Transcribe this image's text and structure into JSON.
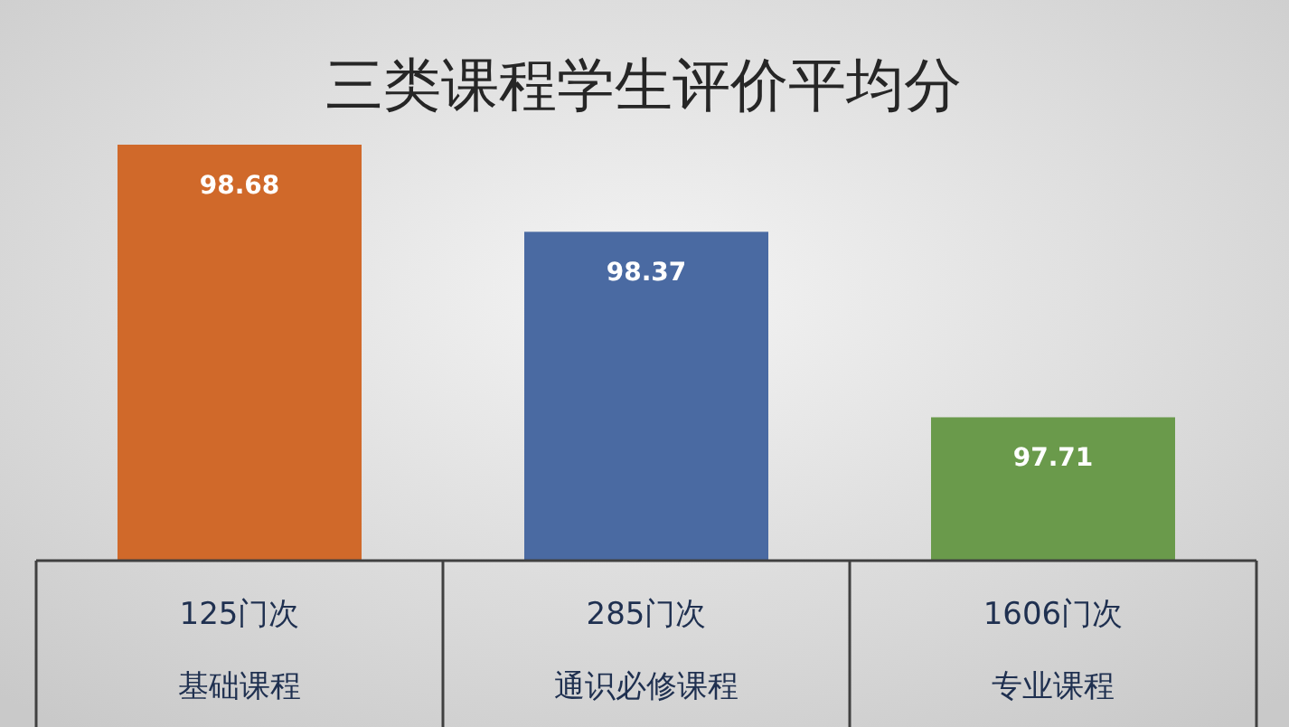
{
  "chart_data": {
    "type": "bar",
    "title": "三类课程学生评价平均分",
    "categories": [
      "基础课程",
      "通识必修课程",
      "专业课程"
    ],
    "values": [
      98.68,
      98.37,
      97.71
    ],
    "colors": [
      "#d0692a",
      "#4a6aa2",
      "#6a9a4b"
    ],
    "ylim": [
      97.2,
      98.68
    ],
    "annotations": [
      "125门次",
      "285门次",
      "1606门次"
    ],
    "data_labels": true
  }
}
